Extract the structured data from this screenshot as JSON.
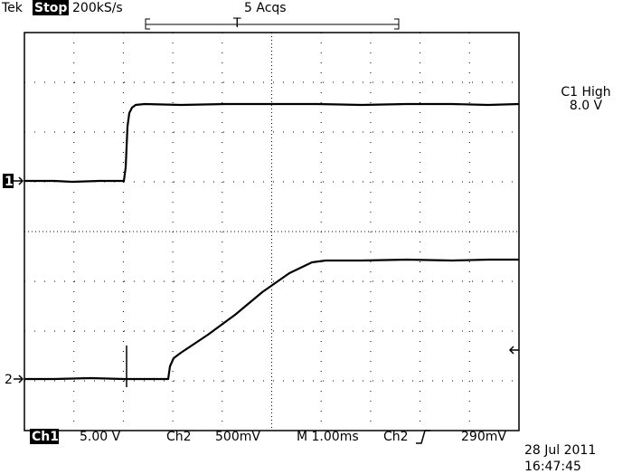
{
  "header": {
    "brand": "Tek",
    "status": "Stop:",
    "sample_rate": "200kS/s",
    "acquisitions": "5 Acqs",
    "trigger_position": "T"
  },
  "measurement": {
    "label": "C1 High",
    "value": "8.0 V"
  },
  "channel_markers": [
    "1",
    "2"
  ],
  "footer": {
    "ch1_label": "Ch1",
    "ch1_scale": "5.00 V",
    "ch2_label": "Ch2",
    "ch2_scale": "500mV",
    "timebase": "M 1.00ms",
    "trigger_source": "Ch2",
    "trigger_level": "290mV",
    "date": "28 Jul 2011",
    "time": "16:47:45"
  }
}
